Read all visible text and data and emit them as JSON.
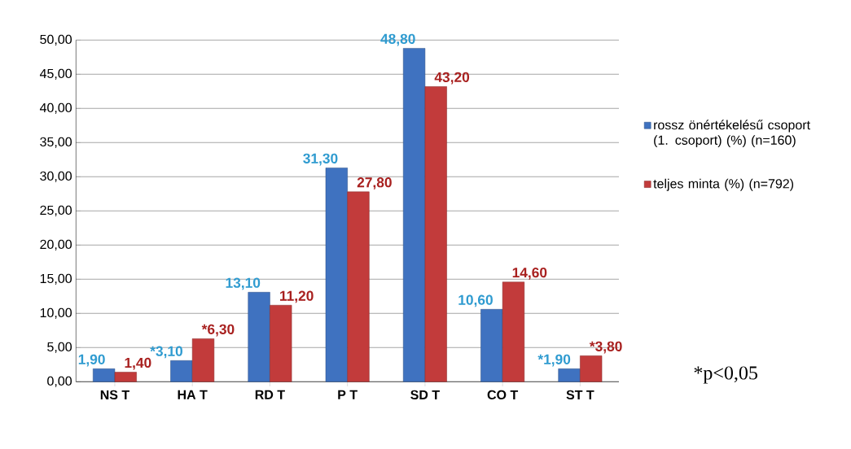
{
  "chart_data": {
    "type": "bar",
    "categories": [
      "NS T",
      "HA T",
      "RD T",
      "P T",
      "SD T",
      "CO T",
      "ST T"
    ],
    "series": [
      {
        "name": "rossz önértékelésű csoport  (1. csoport) (%) (n=160)",
        "color": "#3f72c0",
        "values": [
          1.9,
          3.1,
          13.1,
          31.3,
          48.8,
          10.6,
          1.9
        ],
        "value_labels": [
          "1,90",
          "*3,10",
          "13,10",
          "31,30",
          "48,80",
          "10,60",
          "*1,90"
        ]
      },
      {
        "name": "teljes minta (%) (n=792)",
        "color": "#c23b3b",
        "values": [
          1.4,
          6.3,
          11.2,
          27.8,
          43.2,
          14.6,
          3.8
        ],
        "value_labels": [
          "1,40",
          "*6,30",
          "11,20",
          "27,80",
          "43,20",
          "14,60",
          "*3,80"
        ]
      }
    ],
    "ylim": [
      0,
      50
    ],
    "yticks": [
      {
        "value": 0,
        "label": "0,00"
      },
      {
        "value": 5,
        "label": "5,00"
      },
      {
        "value": 10,
        "label": "10,00"
      },
      {
        "value": 15,
        "label": "15,00"
      },
      {
        "value": 20,
        "label": "20,00"
      },
      {
        "value": 25,
        "label": "25,00"
      },
      {
        "value": 30,
        "label": "30,00"
      },
      {
        "value": 35,
        "label": "35,00"
      },
      {
        "value": 40,
        "label": "40,00"
      },
      {
        "value": 45,
        "label": "45,00"
      },
      {
        "value": 50,
        "label": "50,00"
      }
    ],
    "grid": "y",
    "legend": "right",
    "annotations": [
      "*p<0,05"
    ]
  }
}
